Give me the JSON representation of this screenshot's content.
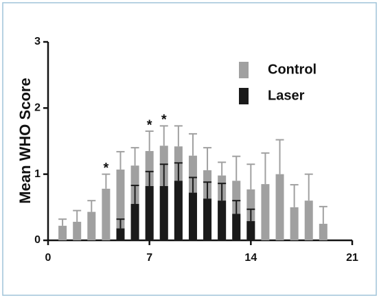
{
  "chart_data": {
    "type": "bar",
    "y_label": "Mean WHO Score",
    "x": [
      1,
      2,
      3,
      4,
      5,
      6,
      7,
      8,
      9,
      10,
      11,
      12,
      13,
      14,
      15,
      16,
      17,
      18,
      19
    ],
    "series": [
      {
        "name": "Control",
        "color": "#a0a0a0",
        "values": [
          0.22,
          0.28,
          0.43,
          0.78,
          1.07,
          1.13,
          1.35,
          1.43,
          1.42,
          1.28,
          1.06,
          0.98,
          0.9,
          0.77,
          0.85,
          1.0,
          0.5,
          0.6,
          0.25
        ],
        "errors": [
          0.1,
          0.17,
          0.17,
          0.22,
          0.27,
          0.27,
          0.3,
          0.3,
          0.31,
          0.33,
          0.34,
          0.2,
          0.37,
          0.38,
          0.47,
          0.52,
          0.34,
          0.4,
          0.26
        ]
      },
      {
        "name": "Laser",
        "color": "#1a1a1a",
        "values": [
          null,
          null,
          null,
          null,
          0.18,
          0.55,
          0.82,
          0.82,
          0.9,
          0.72,
          0.63,
          0.6,
          0.4,
          0.29,
          null,
          null,
          null,
          null,
          null
        ],
        "errors": [
          null,
          null,
          null,
          null,
          0.14,
          0.28,
          0.22,
          0.33,
          0.27,
          0.23,
          0.25,
          0.26,
          0.2,
          0.18,
          null,
          null,
          null,
          null,
          null
        ]
      }
    ],
    "annotations": [
      {
        "text": "*",
        "x": 4
      },
      {
        "text": "*",
        "x": 7
      },
      {
        "text": "*",
        "x": 8
      }
    ],
    "xlim": [
      0,
      21
    ],
    "xticks": [
      0,
      7,
      14,
      21
    ],
    "ylim": [
      0,
      3
    ],
    "yticks": [
      0,
      1,
      2,
      3
    ],
    "legend": "top-right"
  }
}
